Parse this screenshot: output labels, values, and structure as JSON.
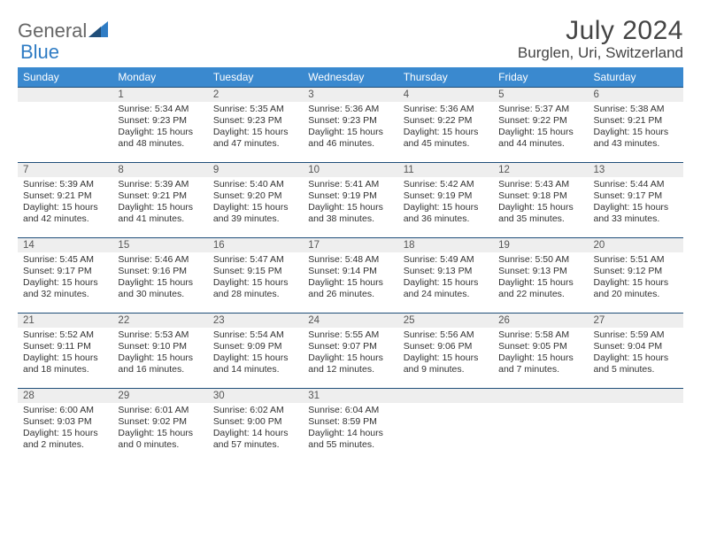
{
  "logo": {
    "text1": "General",
    "text2": "Blue"
  },
  "title": "July 2024",
  "location": "Burglen, Uri, Switzerland",
  "colors": {
    "header_bg": "#3a89cf",
    "header_text": "#ffffff",
    "row_border": "#1f4e79",
    "dayhead_bg": "#eeeeee",
    "logo_blue": "#2f7cc4"
  },
  "weekdays": [
    "Sunday",
    "Monday",
    "Tuesday",
    "Wednesday",
    "Thursday",
    "Friday",
    "Saturday"
  ],
  "weeks": [
    [
      {
        "day": "",
        "sunrise": "",
        "sunset": "",
        "daylight": ""
      },
      {
        "day": "1",
        "sunrise": "Sunrise: 5:34 AM",
        "sunset": "Sunset: 9:23 PM",
        "daylight": "Daylight: 15 hours and 48 minutes."
      },
      {
        "day": "2",
        "sunrise": "Sunrise: 5:35 AM",
        "sunset": "Sunset: 9:23 PM",
        "daylight": "Daylight: 15 hours and 47 minutes."
      },
      {
        "day": "3",
        "sunrise": "Sunrise: 5:36 AM",
        "sunset": "Sunset: 9:23 PM",
        "daylight": "Daylight: 15 hours and 46 minutes."
      },
      {
        "day": "4",
        "sunrise": "Sunrise: 5:36 AM",
        "sunset": "Sunset: 9:22 PM",
        "daylight": "Daylight: 15 hours and 45 minutes."
      },
      {
        "day": "5",
        "sunrise": "Sunrise: 5:37 AM",
        "sunset": "Sunset: 9:22 PM",
        "daylight": "Daylight: 15 hours and 44 minutes."
      },
      {
        "day": "6",
        "sunrise": "Sunrise: 5:38 AM",
        "sunset": "Sunset: 9:21 PM",
        "daylight": "Daylight: 15 hours and 43 minutes."
      }
    ],
    [
      {
        "day": "7",
        "sunrise": "Sunrise: 5:39 AM",
        "sunset": "Sunset: 9:21 PM",
        "daylight": "Daylight: 15 hours and 42 minutes."
      },
      {
        "day": "8",
        "sunrise": "Sunrise: 5:39 AM",
        "sunset": "Sunset: 9:21 PM",
        "daylight": "Daylight: 15 hours and 41 minutes."
      },
      {
        "day": "9",
        "sunrise": "Sunrise: 5:40 AM",
        "sunset": "Sunset: 9:20 PM",
        "daylight": "Daylight: 15 hours and 39 minutes."
      },
      {
        "day": "10",
        "sunrise": "Sunrise: 5:41 AM",
        "sunset": "Sunset: 9:19 PM",
        "daylight": "Daylight: 15 hours and 38 minutes."
      },
      {
        "day": "11",
        "sunrise": "Sunrise: 5:42 AM",
        "sunset": "Sunset: 9:19 PM",
        "daylight": "Daylight: 15 hours and 36 minutes."
      },
      {
        "day": "12",
        "sunrise": "Sunrise: 5:43 AM",
        "sunset": "Sunset: 9:18 PM",
        "daylight": "Daylight: 15 hours and 35 minutes."
      },
      {
        "day": "13",
        "sunrise": "Sunrise: 5:44 AM",
        "sunset": "Sunset: 9:17 PM",
        "daylight": "Daylight: 15 hours and 33 minutes."
      }
    ],
    [
      {
        "day": "14",
        "sunrise": "Sunrise: 5:45 AM",
        "sunset": "Sunset: 9:17 PM",
        "daylight": "Daylight: 15 hours and 32 minutes."
      },
      {
        "day": "15",
        "sunrise": "Sunrise: 5:46 AM",
        "sunset": "Sunset: 9:16 PM",
        "daylight": "Daylight: 15 hours and 30 minutes."
      },
      {
        "day": "16",
        "sunrise": "Sunrise: 5:47 AM",
        "sunset": "Sunset: 9:15 PM",
        "daylight": "Daylight: 15 hours and 28 minutes."
      },
      {
        "day": "17",
        "sunrise": "Sunrise: 5:48 AM",
        "sunset": "Sunset: 9:14 PM",
        "daylight": "Daylight: 15 hours and 26 minutes."
      },
      {
        "day": "18",
        "sunrise": "Sunrise: 5:49 AM",
        "sunset": "Sunset: 9:13 PM",
        "daylight": "Daylight: 15 hours and 24 minutes."
      },
      {
        "day": "19",
        "sunrise": "Sunrise: 5:50 AM",
        "sunset": "Sunset: 9:13 PM",
        "daylight": "Daylight: 15 hours and 22 minutes."
      },
      {
        "day": "20",
        "sunrise": "Sunrise: 5:51 AM",
        "sunset": "Sunset: 9:12 PM",
        "daylight": "Daylight: 15 hours and 20 minutes."
      }
    ],
    [
      {
        "day": "21",
        "sunrise": "Sunrise: 5:52 AM",
        "sunset": "Sunset: 9:11 PM",
        "daylight": "Daylight: 15 hours and 18 minutes."
      },
      {
        "day": "22",
        "sunrise": "Sunrise: 5:53 AM",
        "sunset": "Sunset: 9:10 PM",
        "daylight": "Daylight: 15 hours and 16 minutes."
      },
      {
        "day": "23",
        "sunrise": "Sunrise: 5:54 AM",
        "sunset": "Sunset: 9:09 PM",
        "daylight": "Daylight: 15 hours and 14 minutes."
      },
      {
        "day": "24",
        "sunrise": "Sunrise: 5:55 AM",
        "sunset": "Sunset: 9:07 PM",
        "daylight": "Daylight: 15 hours and 12 minutes."
      },
      {
        "day": "25",
        "sunrise": "Sunrise: 5:56 AM",
        "sunset": "Sunset: 9:06 PM",
        "daylight": "Daylight: 15 hours and 9 minutes."
      },
      {
        "day": "26",
        "sunrise": "Sunrise: 5:58 AM",
        "sunset": "Sunset: 9:05 PM",
        "daylight": "Daylight: 15 hours and 7 minutes."
      },
      {
        "day": "27",
        "sunrise": "Sunrise: 5:59 AM",
        "sunset": "Sunset: 9:04 PM",
        "daylight": "Daylight: 15 hours and 5 minutes."
      }
    ],
    [
      {
        "day": "28",
        "sunrise": "Sunrise: 6:00 AM",
        "sunset": "Sunset: 9:03 PM",
        "daylight": "Daylight: 15 hours and 2 minutes."
      },
      {
        "day": "29",
        "sunrise": "Sunrise: 6:01 AM",
        "sunset": "Sunset: 9:02 PM",
        "daylight": "Daylight: 15 hours and 0 minutes."
      },
      {
        "day": "30",
        "sunrise": "Sunrise: 6:02 AM",
        "sunset": "Sunset: 9:00 PM",
        "daylight": "Daylight: 14 hours and 57 minutes."
      },
      {
        "day": "31",
        "sunrise": "Sunrise: 6:04 AM",
        "sunset": "Sunset: 8:59 PM",
        "daylight": "Daylight: 14 hours and 55 minutes."
      },
      {
        "day": "",
        "sunrise": "",
        "sunset": "",
        "daylight": ""
      },
      {
        "day": "",
        "sunrise": "",
        "sunset": "",
        "daylight": ""
      },
      {
        "day": "",
        "sunrise": "",
        "sunset": "",
        "daylight": ""
      }
    ]
  ]
}
